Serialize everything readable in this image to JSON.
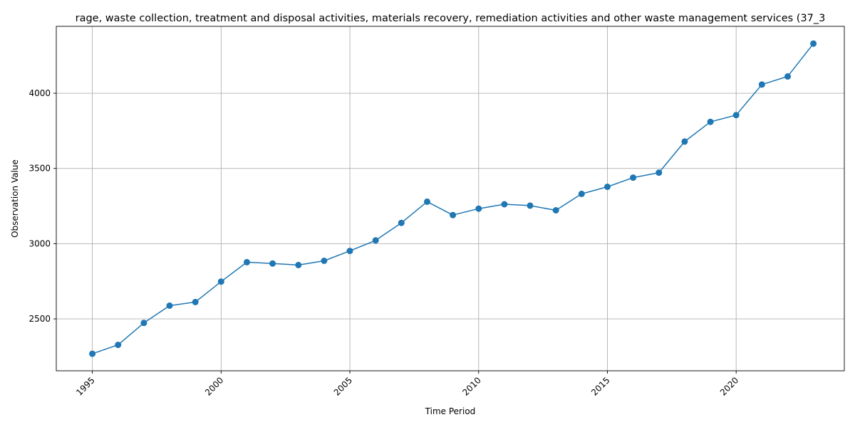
{
  "chart_data": {
    "type": "line",
    "title": "rage, waste collection, treatment and disposal activities, materials recovery, remediation activities and other waste management services (37_3",
    "xlabel": "Time Period",
    "ylabel": "Observation Value",
    "xlim": [
      1993.6,
      2024.2
    ],
    "ylim": [
      2155,
      4445
    ],
    "xticks": [
      1995,
      2000,
      2005,
      2010,
      2015,
      2020
    ],
    "yticks": [
      2500,
      3000,
      3500,
      4000
    ],
    "grid": true,
    "color": "#1f77b4",
    "marker": "circle",
    "x": [
      1995,
      1996,
      1997,
      1998,
      1999,
      2000,
      2001,
      2002,
      2003,
      2004,
      2005,
      2006,
      2007,
      2008,
      2009,
      2010,
      2011,
      2012,
      2013,
      2014,
      2015,
      2016,
      2017,
      2018,
      2019,
      2020,
      2021,
      2022,
      2023
    ],
    "values": [
      2268,
      2327,
      2473,
      2588,
      2612,
      2748,
      2877,
      2868,
      2858,
      2886,
      2952,
      3022,
      3138,
      3279,
      3190,
      3233,
      3262,
      3253,
      3222,
      3331,
      3378,
      3439,
      3472,
      3679,
      3810,
      3855,
      4058,
      4112,
      4330
    ]
  }
}
